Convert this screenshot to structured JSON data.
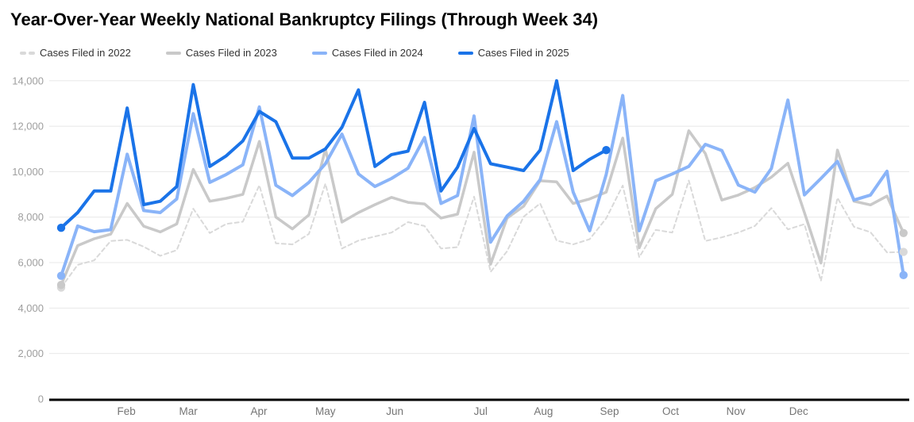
{
  "title": "Year-Over-Year Weekly National Bankruptcy Filings (Through Week 34)",
  "legend": [
    {
      "label": "Cases Filed in 2022",
      "color": "#d9d9d9",
      "style": "dashed"
    },
    {
      "label": "Cases Filed in 2023",
      "color": "#c9c9c9",
      "style": "solid"
    },
    {
      "label": "Cases Filed in 2024",
      "color": "#8ab4f8",
      "style": "solid"
    },
    {
      "label": "Cases Filed in 2025",
      "color": "#1a73e8",
      "style": "solid"
    }
  ],
  "chart_data": {
    "type": "line",
    "title": "Year-Over-Year Weekly National Bankruptcy Filings (Through Week 34)",
    "x_unit": "week of year (1-52)",
    "x_axis_month_labels": [
      {
        "label": "Feb",
        "week": 4.95
      },
      {
        "label": "Mar",
        "week": 8.7
      },
      {
        "label": "Apr",
        "week": 12.97
      },
      {
        "label": "May",
        "week": 17.0
      },
      {
        "label": "Jun",
        "week": 21.2
      },
      {
        "label": "Jul",
        "week": 26.4
      },
      {
        "label": "Aug",
        "week": 30.2
      },
      {
        "label": "Sep",
        "week": 34.2
      },
      {
        "label": "Oct",
        "week": 37.9
      },
      {
        "label": "Nov",
        "week": 41.85
      },
      {
        "label": "Dec",
        "week": 45.65
      }
    ],
    "y_axis": {
      "min": 0,
      "max": 14000,
      "step": 2000,
      "gridlines": true,
      "tick_labels": [
        "0",
        "2,000",
        "4,000",
        "6,000",
        "8,000",
        "10,000",
        "12,000",
        "14,000"
      ]
    },
    "legend_position": "top",
    "series": [
      {
        "name": "Cases Filed in 2022",
        "color": "#d9d9d9",
        "dashed": true,
        "width": 2,
        "start_dot": true,
        "end_dot": true,
        "values": [
          4900,
          5900,
          6100,
          6950,
          7000,
          6700,
          6300,
          6550,
          8370,
          7300,
          7700,
          7800,
          9400,
          6850,
          6800,
          7260,
          9470,
          6620,
          6970,
          7150,
          7320,
          7780,
          7610,
          6620,
          6680,
          8900,
          5590,
          6500,
          8020,
          8600,
          6970,
          6800,
          7030,
          7950,
          9390,
          6240,
          7440,
          7320,
          9610,
          6950,
          7110,
          7320,
          7610,
          8400,
          7460,
          7690,
          5200,
          8850,
          7575,
          7340,
          6450,
          6470
        ]
      },
      {
        "name": "Cases Filed in 2023",
        "color": "#c9c9c9",
        "dashed": false,
        "width": 3.5,
        "start_dot": true,
        "end_dot": true,
        "values": [
          5020,
          6750,
          7050,
          7250,
          8600,
          7600,
          7350,
          7700,
          10100,
          8700,
          8830,
          9000,
          11330,
          8000,
          7480,
          8100,
          11000,
          7780,
          8200,
          8550,
          8870,
          8650,
          8580,
          7960,
          8130,
          10860,
          5930,
          7960,
          8480,
          9600,
          9550,
          8600,
          8800,
          9100,
          11480,
          6650,
          8370,
          9000,
          11800,
          10800,
          8750,
          8970,
          9300,
          9760,
          10370,
          8200,
          5980,
          10950,
          8700,
          8540,
          8925,
          7300
        ]
      },
      {
        "name": "Cases Filed in 2024",
        "color": "#8ab4f8",
        "dashed": false,
        "width": 4,
        "start_dot": true,
        "end_dot": true,
        "values": [
          5420,
          7610,
          7360,
          7450,
          10770,
          8290,
          8200,
          8800,
          12550,
          9530,
          9880,
          10300,
          12850,
          9400,
          8950,
          9530,
          10350,
          11650,
          9900,
          9350,
          9700,
          10150,
          11500,
          8600,
          8950,
          12450,
          6900,
          8050,
          8700,
          9650,
          12200,
          9100,
          7400,
          9880,
          13350,
          7400,
          9600,
          9900,
          10230,
          11200,
          10930,
          9410,
          9100,
          10140,
          13150,
          8980,
          9700,
          10450,
          8750,
          8970,
          10020,
          5450
        ]
      },
      {
        "name": "Cases Filed in 2025",
        "color": "#1a73e8",
        "dashed": false,
        "width": 4,
        "start_dot": true,
        "end_dot": true,
        "values": [
          7530,
          8200,
          9150,
          9150,
          12800,
          8550,
          8700,
          9350,
          13830,
          10230,
          10700,
          11350,
          12650,
          12200,
          10600,
          10600,
          11000,
          11950,
          13600,
          10230,
          10750,
          10900,
          13050,
          9150,
          10200,
          11900,
          10350,
          10200,
          10050,
          10950,
          14000,
          10050,
          10550,
          10950
        ]
      }
    ]
  }
}
